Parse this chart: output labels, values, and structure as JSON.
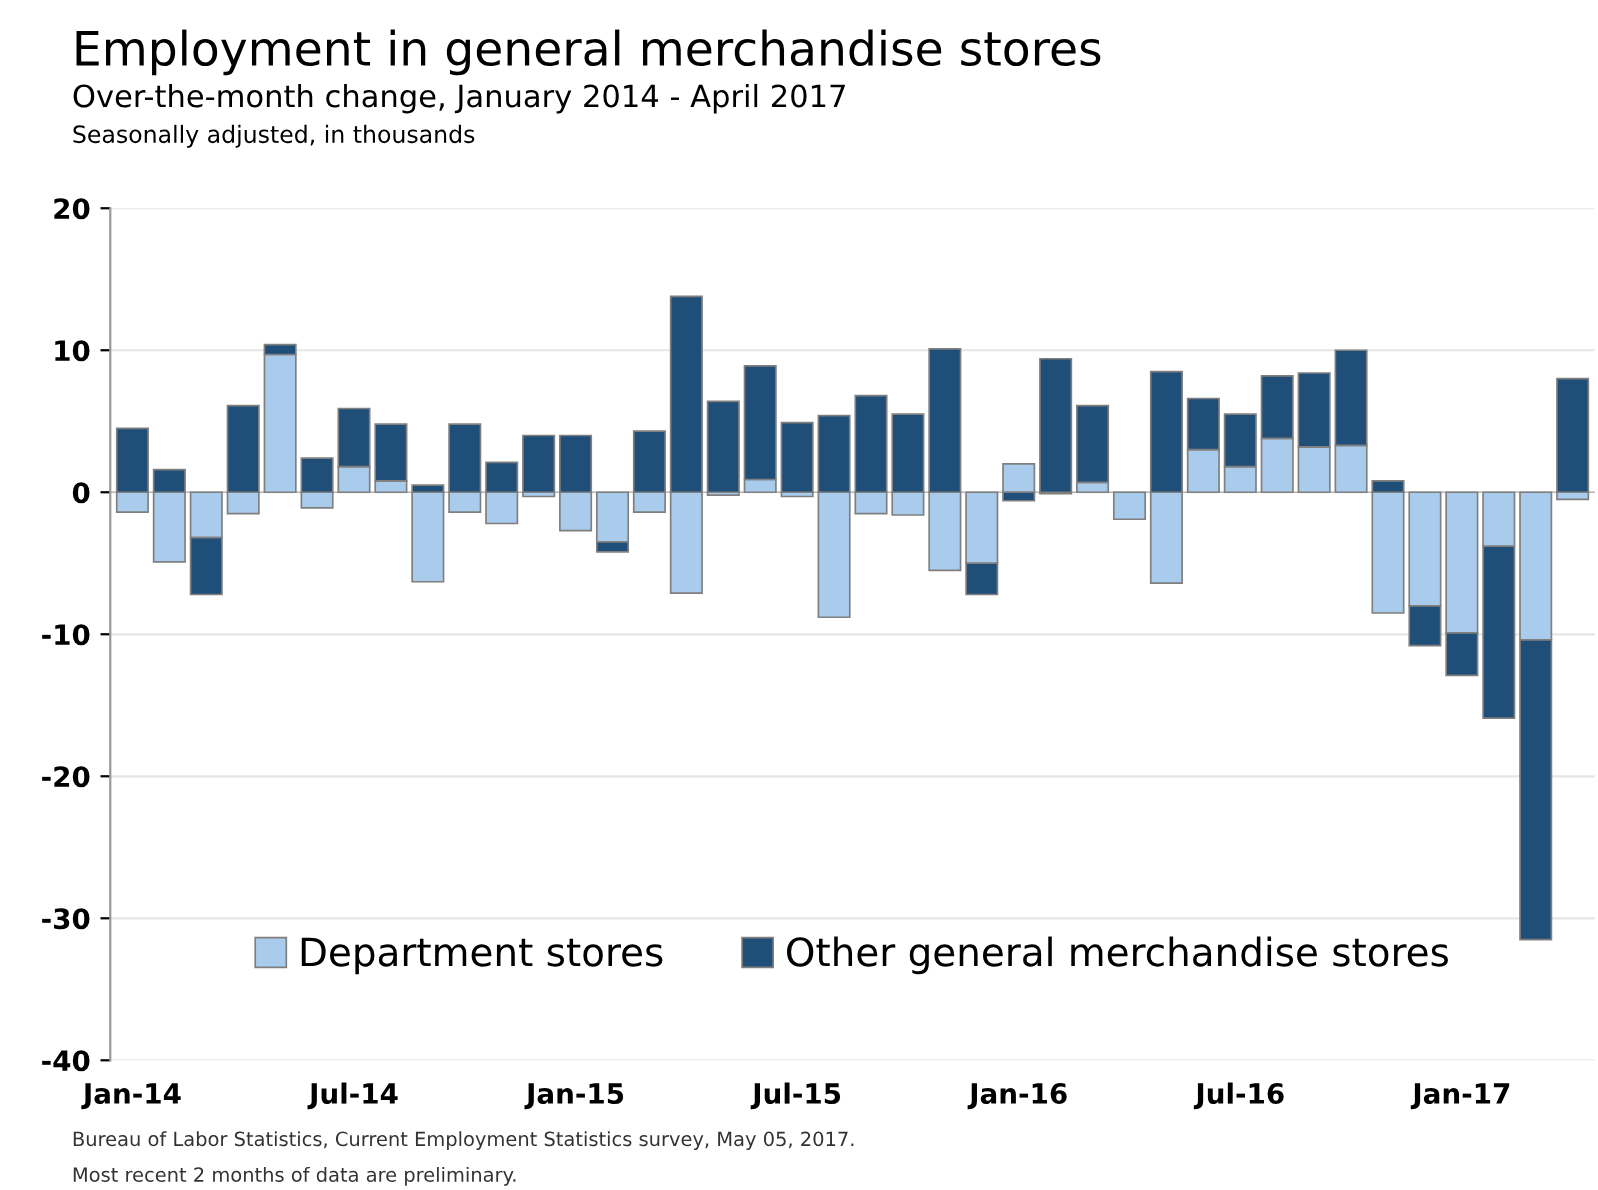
{
  "chart_data": {
    "type": "bar",
    "title": "Employment in general merchandise stores",
    "subtitle": "Over-the-month change, January 2014 - April 2017",
    "ylabel": "Seasonally adjusted, in thousands",
    "categories": [
      "Jan-14",
      null,
      null,
      null,
      null,
      null,
      "Jul-14",
      null,
      null,
      null,
      null,
      null,
      "Jan-15",
      null,
      null,
      null,
      null,
      null,
      "Jul-15",
      null,
      null,
      null,
      null,
      null,
      "Jan-16",
      null,
      null,
      null,
      null,
      null,
      "Jul-16",
      null,
      null,
      null,
      null,
      null,
      "Jan-17",
      null,
      null,
      null
    ],
    "stacked": true,
    "series": [
      {
        "name": "Department stores",
        "color": "#a9cbec",
        "values": [
          -1.4,
          -4.9,
          -3.2,
          -1.5,
          9.7,
          -1.1,
          1.8,
          0.8,
          -6.3,
          -1.4,
          -2.2,
          -0.3,
          -2.7,
          -3.5,
          -1.4,
          -7.1,
          -0.2,
          0.9,
          -0.3,
          -8.8,
          -1.5,
          -1.6,
          -5.5,
          -5.0,
          2.0,
          -0.1,
          0.7,
          -1.9,
          -6.4,
          3.0,
          1.8,
          3.8,
          3.2,
          3.3,
          -8.5,
          -8.0,
          -9.9,
          -3.8,
          -10.4,
          -0.5
        ]
      },
      {
        "name": "Other general merchandise stores",
        "color": "#1f4e79",
        "values": [
          4.5,
          1.6,
          -4.0,
          6.1,
          0.7,
          2.4,
          4.1,
          4.0,
          0.5,
          4.8,
          2.1,
          4.0,
          4.0,
          -0.7,
          4.3,
          13.8,
          6.4,
          8.0,
          4.9,
          5.4,
          6.8,
          5.5,
          10.1,
          -2.2,
          -0.6,
          9.4,
          5.4,
          null,
          8.5,
          3.6,
          3.7,
          4.4,
          5.2,
          6.7,
          0.8,
          -2.8,
          -3.0,
          -12.1,
          -21.1,
          8.0
        ]
      }
    ],
    "ylim": [
      -40,
      20
    ],
    "yticks": [
      -40,
      -30,
      -20,
      -10,
      0,
      10,
      20
    ],
    "grid": "y",
    "legend": "bottom",
    "annotations": [
      "Bureau of Labor Statistics, Current Employment Statistics survey, May 05, 2017.",
      "Most recent 2 months of data are preliminary."
    ]
  }
}
